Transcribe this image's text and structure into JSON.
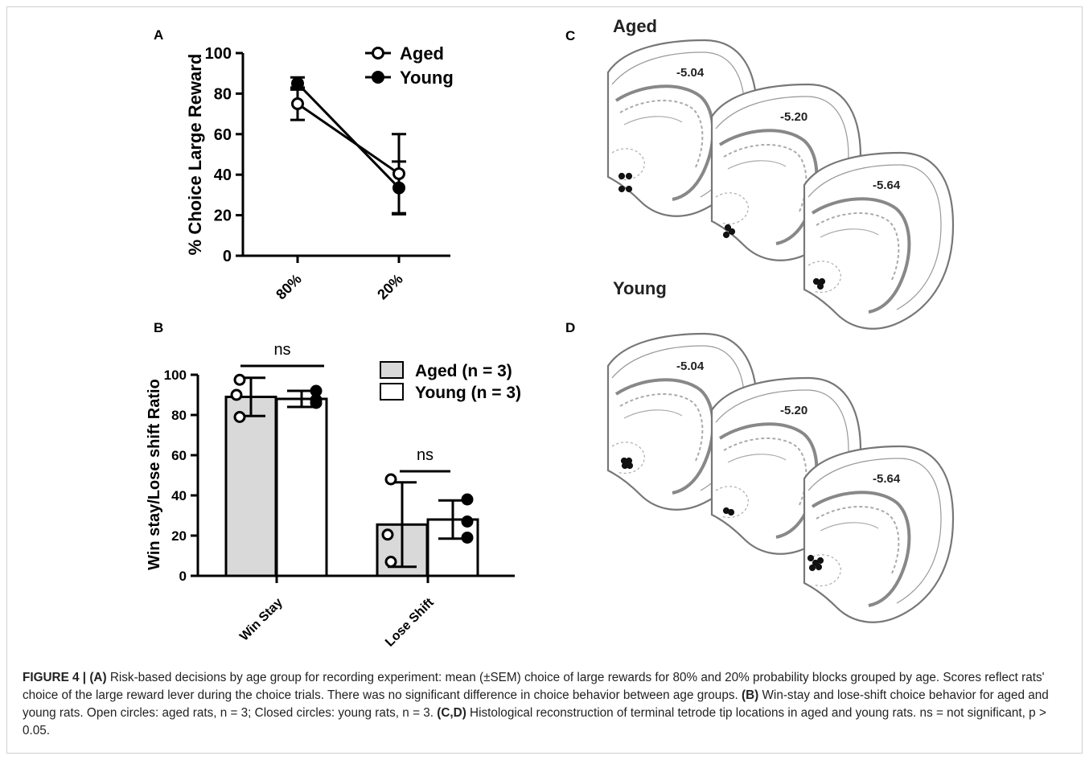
{
  "panels": {
    "A": "A",
    "B": "B",
    "C": "C",
    "D": "D"
  },
  "chart_data": [
    {
      "type": "line",
      "panel": "A",
      "ylabel": "% Choice Large Reward",
      "xlabel": "",
      "ylim": [
        0,
        100
      ],
      "yticks": [
        "0",
        "20",
        "40",
        "60",
        "80",
        "100"
      ],
      "categories": [
        "80%",
        "20%"
      ],
      "series": [
        {
          "name": "Aged",
          "marker": "open-circle",
          "values": [
            75,
            40.5
          ],
          "errors": [
            8,
            19.5
          ]
        },
        {
          "name": "Young",
          "marker": "filled-circle",
          "values": [
            85,
            33.5
          ],
          "errors": [
            3,
            13
          ]
        }
      ],
      "legend_placement": "top-right"
    },
    {
      "type": "bar",
      "panel": "B",
      "ylabel": "Win stay/Lose shift Ratio",
      "xlabel": "",
      "ylim": [
        0,
        100
      ],
      "yticks": [
        "0",
        "20",
        "40",
        "60",
        "80",
        "100"
      ],
      "categories": [
        "Win Stay",
        "Lose Shift"
      ],
      "series": [
        {
          "name": "Aged (n = 3)",
          "fill": "#d9d9d9",
          "values": [
            89,
            25.5
          ],
          "errors": [
            9.5,
            21
          ],
          "points": [
            [
              97.5,
              90,
              79
            ],
            [
              48,
              20.5,
              7
            ]
          ]
        },
        {
          "name": "Young (n = 3)",
          "fill": "#ffffff",
          "values": [
            88,
            28
          ],
          "errors": [
            4,
            9.5
          ],
          "points": [
            [
              92,
              87.5,
              86
            ],
            [
              38,
              27,
              19
            ]
          ]
        }
      ],
      "annotations": [
        "ns",
        "ns"
      ],
      "legend_placement": "top-right"
    }
  ],
  "histology": {
    "aged_title": "Aged",
    "young_title": "Young",
    "levels": [
      "-5.04",
      "-5.20",
      "-5.64"
    ]
  },
  "caption": {
    "figure_label": "FIGURE 4 | ",
    "a_label": "(A)",
    "a_text": " Risk-based decisions by age group for recording experiment: mean (±SEM) choice of large rewards for 80% and 20% probability blocks grouped by age. Scores reflect rats' choice of the large reward lever during the choice trials. There was no significant difference in choice behavior between age groups. ",
    "b_label": "(B)",
    "b_text": " Win-stay and lose-shift choice behavior for aged and young rats. Open circles: aged rats, n = 3; Closed circles: young rats, n = 3. ",
    "cd_label": "(C,D)",
    "cd_text": " Histological reconstruction of terminal tetrode tip locations in aged and young rats. ns = not significant, p > 0.05."
  }
}
